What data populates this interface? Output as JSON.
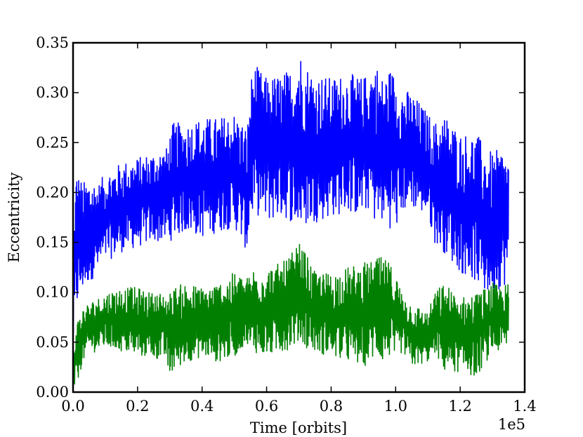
{
  "chart_data": {
    "type": "line",
    "title": "",
    "xlabel": "Time [orbits]",
    "ylabel": "Eccentricity",
    "x_offset_label": "1e5",
    "xlim": [
      0.0,
      1.4
    ],
    "ylim": [
      0.0,
      0.35
    ],
    "x_ticks": [
      "0.0",
      "0.2",
      "0.4",
      "0.6",
      "0.8",
      "1.0",
      "1.2",
      "1.4"
    ],
    "y_ticks": [
      "0.00",
      "0.05",
      "0.10",
      "0.15",
      "0.20",
      "0.25",
      "0.30",
      "0.35"
    ],
    "grid": false,
    "legend": "none",
    "series": [
      {
        "color": "#0000ff",
        "x": [
          0.0,
          0.01,
          0.03,
          0.05,
          0.08,
          0.1,
          0.15,
          0.2,
          0.24,
          0.29,
          0.3,
          0.31,
          0.35,
          0.4,
          0.45,
          0.5,
          0.54,
          0.55,
          0.56,
          0.6,
          0.65,
          0.68,
          0.7,
          0.72,
          0.75,
          0.8,
          0.85,
          0.9,
          0.92,
          0.94,
          0.96,
          0.98,
          1.0,
          1.02,
          1.05,
          1.1,
          1.12,
          1.15,
          1.2,
          1.25,
          1.28,
          1.3,
          1.33,
          1.35
        ],
        "upper": [
          0.15,
          0.225,
          0.21,
          0.215,
          0.21,
          0.22,
          0.23,
          0.235,
          0.24,
          0.245,
          0.26,
          0.27,
          0.27,
          0.275,
          0.275,
          0.28,
          0.265,
          0.31,
          0.33,
          0.315,
          0.32,
          0.325,
          0.345,
          0.33,
          0.32,
          0.315,
          0.32,
          0.315,
          0.325,
          0.33,
          0.315,
          0.325,
          0.32,
          0.305,
          0.3,
          0.28,
          0.27,
          0.28,
          0.26,
          0.26,
          0.245,
          0.24,
          0.245,
          0.235
        ],
        "lower": [
          0.04,
          0.08,
          0.1,
          0.11,
          0.12,
          0.13,
          0.14,
          0.145,
          0.15,
          0.15,
          0.15,
          0.155,
          0.16,
          0.155,
          0.16,
          0.165,
          0.14,
          0.17,
          0.18,
          0.17,
          0.175,
          0.17,
          0.16,
          0.165,
          0.17,
          0.175,
          0.18,
          0.175,
          0.185,
          0.165,
          0.17,
          0.165,
          0.16,
          0.18,
          0.185,
          0.175,
          0.15,
          0.14,
          0.12,
          0.11,
          0.095,
          0.1,
          0.105,
          0.11
        ]
      },
      {
        "color": "#007f00",
        "x": [
          0.0,
          0.01,
          0.03,
          0.05,
          0.08,
          0.1,
          0.15,
          0.2,
          0.24,
          0.29,
          0.3,
          0.31,
          0.35,
          0.4,
          0.45,
          0.5,
          0.54,
          0.55,
          0.56,
          0.6,
          0.65,
          0.68,
          0.7,
          0.72,
          0.75,
          0.8,
          0.85,
          0.9,
          0.92,
          0.94,
          0.96,
          0.98,
          1.0,
          1.02,
          1.05,
          1.1,
          1.12,
          1.15,
          1.2,
          1.25,
          1.28,
          1.3,
          1.33,
          1.35
        ],
        "upper": [
          0.04,
          0.07,
          0.085,
          0.09,
          0.095,
          0.1,
          0.105,
          0.105,
          0.1,
          0.1,
          0.1,
          0.105,
          0.11,
          0.105,
          0.11,
          0.12,
          0.115,
          0.12,
          0.125,
          0.125,
          0.13,
          0.14,
          0.15,
          0.14,
          0.12,
          0.12,
          0.125,
          0.13,
          0.13,
          0.135,
          0.135,
          0.13,
          0.12,
          0.1,
          0.09,
          0.08,
          0.1,
          0.11,
          0.095,
          0.1,
          0.105,
          0.11,
          0.105,
          0.11
        ],
        "lower": [
          0.0,
          0.005,
          0.03,
          0.04,
          0.04,
          0.045,
          0.04,
          0.035,
          0.035,
          0.03,
          0.01,
          0.02,
          0.03,
          0.035,
          0.03,
          0.035,
          0.05,
          0.035,
          0.04,
          0.035,
          0.04,
          0.045,
          0.05,
          0.045,
          0.04,
          0.035,
          0.03,
          0.025,
          0.03,
          0.035,
          0.03,
          0.035,
          0.03,
          0.04,
          0.025,
          0.03,
          0.04,
          0.02,
          0.02,
          0.015,
          0.03,
          0.04,
          0.04,
          0.045
        ]
      }
    ]
  }
}
